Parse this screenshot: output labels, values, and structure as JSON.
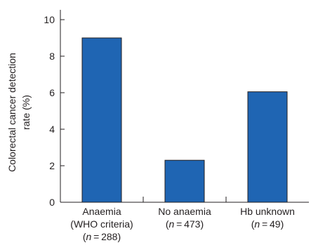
{
  "chart_data": {
    "type": "bar",
    "categories": [
      {
        "lines": [
          "Anaemia",
          "(WHO criteria)"
        ],
        "n": "288"
      },
      {
        "lines": [
          "No anaemia"
        ],
        "n": "473"
      },
      {
        "lines": [
          "Hb unknown"
        ],
        "n": "49"
      }
    ],
    "values": [
      9.0,
      2.3,
      6.05
    ],
    "ylabel": {
      "line1": "Colorectal cancer detection",
      "line2": "rate (%)"
    },
    "ylim": [
      0,
      10
    ],
    "yticks": [
      "0",
      "2",
      "4",
      "6",
      "8",
      "10"
    ],
    "grid": false,
    "bar_color": "#1f65b3"
  }
}
